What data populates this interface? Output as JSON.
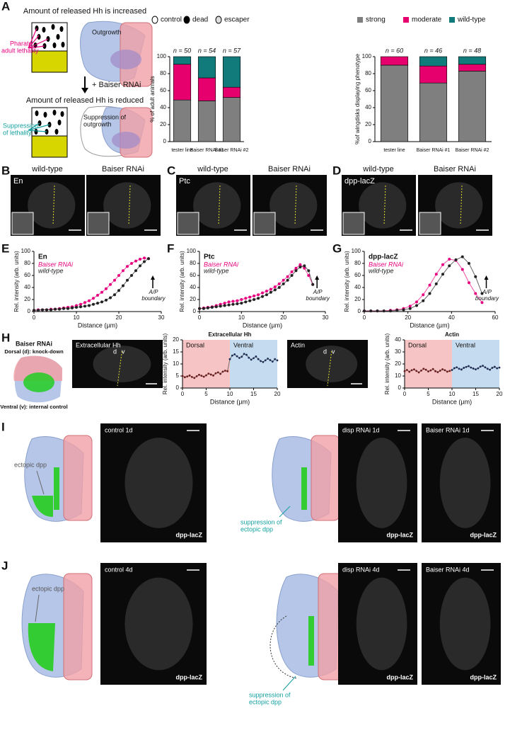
{
  "panel_labels": [
    "A",
    "B",
    "C",
    "D",
    "E",
    "F",
    "G",
    "H",
    "I",
    "J"
  ],
  "diagram_A": {
    "top_title": "Amount of released Hh is increased",
    "lethality": [
      "Pharate",
      "adult lethality"
    ],
    "outgrowth": "Outgrowth",
    "treatment": "+ Baiser RNAi",
    "bottom_title": "Amount of released Hh is reduced",
    "suppression_lethality": [
      "Suppression",
      "of lethality"
    ],
    "suppression_outgrowth": [
      "Suppression of",
      "outgrowth"
    ]
  },
  "image_panels": [
    {
      "marker": "En",
      "conditions": [
        "wild-type",
        "Baiser RNAi"
      ]
    },
    {
      "marker": "Ptc",
      "conditions": [
        "wild-type",
        "Baiser RNAi"
      ]
    },
    {
      "marker": "dpp-lacZ",
      "conditions": [
        "wild-type",
        "Baiser RNAi"
      ]
    }
  ],
  "diagram_H": {
    "title": "Baiser RNAi",
    "dorsal": "Dorsal (d): knock-down",
    "ventral": "Ventral (v): internal control"
  },
  "images_H": [
    {
      "label": "Extracellular Hh",
      "d": "d",
      "v": "v"
    },
    {
      "label": "Actin",
      "d": "d",
      "v": "v"
    }
  ],
  "panel_I": {
    "ectopic": "ectopic dpp",
    "suppression": [
      "suppression of",
      "ectopic dpp"
    ],
    "images": [
      {
        "label": "control 1d",
        "marker": "dpp-lacZ"
      },
      {
        "label": "disp RNAi 1d",
        "marker": "dpp-lacZ"
      },
      {
        "label": "Baiser RNAi 1d",
        "marker": "dpp-lacZ"
      }
    ]
  },
  "panel_J": {
    "ectopic": "ectopic dpp",
    "suppression": [
      "suppression of",
      "ectopic dpp"
    ],
    "images": [
      {
        "label": "control 4d",
        "marker": "dpp-lacZ"
      },
      {
        "label": "disp RNAi 4d",
        "marker": "dpp-lacZ"
      },
      {
        "label": "Baiser RNAi 4d",
        "marker": "dpp-lacZ"
      }
    ]
  },
  "chart_data": [
    {
      "type": "bar",
      "ylabel": "% of adult animals",
      "categories": [
        "tester line",
        "Baiser RNAi #1",
        "Baiser RNAi #2"
      ],
      "annotations": [
        "n = 50",
        "n = 54",
        "n = 57"
      ],
      "series": [
        {
          "name": "control",
          "color": "#7f7f7f",
          "icon": "#ffffff",
          "values": [
            49,
            48,
            52
          ]
        },
        {
          "name": "dead",
          "color": "#e6006e",
          "icon": "#000000",
          "values": [
            42,
            27,
            12
          ]
        },
        {
          "name": "escaper",
          "color": "#117a7a",
          "icon": "#dddddd",
          "values": [
            9,
            25,
            36
          ]
        }
      ],
      "ylim": [
        0,
        100
      ],
      "yticks": [
        0,
        20,
        40,
        60,
        80,
        100
      ]
    },
    {
      "type": "bar",
      "ylabel": "%of wingdisks displaying phenotype",
      "categories": [
        "tester line",
        "Baiser RNAi #1",
        "Baiser RNAi #2"
      ],
      "annotations": [
        "n = 60",
        "n = 46",
        "n = 48"
      ],
      "series": [
        {
          "name": "strong",
          "color": "#7f7f7f",
          "icon": "#7f7f7f",
          "values": [
            90,
            69,
            83
          ]
        },
        {
          "name": "moderate",
          "color": "#e6006e",
          "icon": "#e6006e",
          "values": [
            10,
            20,
            8
          ]
        },
        {
          "name": "wild-type",
          "color": "#117a7a",
          "icon": "#117a7a",
          "values": [
            0,
            11,
            9
          ]
        }
      ],
      "ylim": [
        0,
        100
      ],
      "yticks": [
        0,
        20,
        40,
        60,
        80,
        100
      ]
    },
    {
      "type": "line",
      "title": "En",
      "xlabel": "Distance (µm)",
      "ylabel": "Rel. intensity (arb. units)",
      "annotation": [
        "A/P",
        "boundary"
      ],
      "x": [
        0,
        1,
        2,
        3,
        4,
        5,
        6,
        7,
        8,
        9,
        10,
        11,
        12,
        13,
        14,
        15,
        16,
        17,
        18,
        19,
        20,
        21,
        22,
        23,
        24,
        25,
        26,
        27
      ],
      "series": [
        {
          "name": "Baiser RNAi",
          "color": "#e6007e",
          "values": [
            2,
            3,
            3,
            3,
            4,
            4,
            5,
            6,
            7,
            8,
            10,
            12,
            15,
            18,
            22,
            27,
            32,
            38,
            45,
            52,
            60,
            68,
            75,
            80,
            84,
            87,
            89,
            88
          ]
        },
        {
          "name": "wild-type",
          "color": "#222222",
          "values": [
            2,
            2,
            3,
            3,
            3,
            4,
            4,
            5,
            5,
            6,
            7,
            8,
            9,
            10,
            12,
            14,
            16,
            19,
            23,
            28,
            35,
            43,
            52,
            60,
            68,
            76,
            83,
            88
          ]
        }
      ],
      "xlim": [
        0,
        30
      ],
      "xticks": [
        0,
        10,
        20,
        30
      ],
      "ylim": [
        0,
        100
      ],
      "yticks": [
        0,
        20,
        40,
        60,
        80,
        100
      ]
    },
    {
      "type": "line",
      "title": "Ptc",
      "xlabel": "Distance (µm)",
      "ylabel": "Rel. intensity (arb. units)",
      "annotation": [
        "A/P",
        "boundary"
      ],
      "x": [
        0,
        1,
        2,
        3,
        4,
        5,
        6,
        7,
        8,
        9,
        10,
        11,
        12,
        13,
        14,
        15,
        16,
        17,
        18,
        19,
        20,
        21,
        22,
        23,
        24,
        25,
        26,
        27
      ],
      "series": [
        {
          "name": "Baiser RNAi",
          "color": "#e6007e",
          "values": [
            5,
            6,
            7,
            8,
            10,
            12,
            14,
            16,
            17,
            18,
            20,
            22,
            24,
            26,
            28,
            31,
            34,
            37,
            41,
            46,
            52,
            58,
            66,
            72,
            78,
            72,
            60,
            45
          ]
        },
        {
          "name": "wild-type",
          "color": "#222222",
          "values": [
            5,
            5,
            6,
            7,
            8,
            9,
            10,
            11,
            12,
            13,
            14,
            16,
            18,
            20,
            22,
            25,
            28,
            32,
            36,
            40,
            46,
            52,
            60,
            68,
            74,
            76,
            68,
            45
          ]
        }
      ],
      "xlim": [
        0,
        30
      ],
      "xticks": [
        0,
        10,
        20,
        30
      ],
      "ylim": [
        0,
        100
      ],
      "yticks": [
        0,
        20,
        40,
        60,
        80,
        100
      ]
    },
    {
      "type": "line",
      "title": "dpp-lacZ",
      "xlabel": "Distance (µm)",
      "ylabel": "Rel. intensity (arb. units)",
      "annotation": [
        "A/P",
        "boundary"
      ],
      "x": [
        0,
        3,
        6,
        9,
        12,
        15,
        18,
        21,
        24,
        27,
        30,
        33,
        36,
        39,
        42,
        45,
        48,
        51,
        54
      ],
      "series": [
        {
          "name": "Baiser RNAi",
          "color": "#e6007e",
          "values": [
            1,
            1,
            1,
            1,
            2,
            3,
            5,
            9,
            16,
            28,
            44,
            62,
            78,
            87,
            85,
            70,
            48,
            30,
            15
          ]
        },
        {
          "name": "wild-type",
          "color": "#222222",
          "values": [
            1,
            1,
            1,
            1,
            1,
            2,
            3,
            5,
            10,
            18,
            30,
            46,
            62,
            76,
            86,
            91,
            80,
            58,
            30
          ]
        }
      ],
      "xlim": [
        0,
        60
      ],
      "xticks": [
        0,
        20,
        40,
        60
      ],
      "ylim": [
        0,
        100
      ],
      "yticks": [
        0,
        20,
        40,
        60,
        80,
        100
      ]
    },
    {
      "type": "line",
      "title": "Extracellular Hh",
      "xlabel": "Distance (µm)",
      "ylabel": "Rel. intensity (arb. units)",
      "regions": [
        {
          "label": "Dorsal",
          "from": 0,
          "to": 10,
          "color": "#f6c4c4",
          "point_color": "#6b1d1d"
        },
        {
          "label": "Ventral",
          "from": 10,
          "to": 20,
          "color": "#c5dbef",
          "point_color": "#1d2d55"
        }
      ],
      "x": [
        0,
        0.5,
        1,
        1.5,
        2,
        2.5,
        3,
        3.5,
        4,
        4.5,
        5,
        5.5,
        6,
        6.5,
        7,
        7.5,
        8,
        8.5,
        9,
        9.5,
        10,
        10.5,
        11,
        11.5,
        12,
        12.5,
        13,
        13.5,
        14,
        14.5,
        15,
        15.5,
        16,
        16.5,
        17,
        17.5,
        18,
        18.5,
        19,
        19.5,
        20
      ],
      "series": [
        {
          "values": [
            5,
            4.5,
            4.8,
            5.2,
            4.6,
            4.2,
            4.9,
            5.5,
            5.1,
            4.7,
            5.3,
            6,
            5.6,
            5.2,
            6.1,
            6.5,
            5.9,
            6.8,
            7.2,
            7,
            12,
            13.5,
            14,
            13.2,
            12.5,
            13,
            14.2,
            13.8,
            12.6,
            11.8,
            12.4,
            13.1,
            12,
            11.2,
            10.8,
            11.5,
            12.2,
            11.6,
            11,
            12,
            11.5
          ]
        }
      ],
      "xlim": [
        0,
        20
      ],
      "xticks": [
        0,
        5,
        10,
        15,
        20
      ],
      "ylim": [
        0,
        20
      ],
      "yticks": [
        0,
        5,
        10,
        15,
        20
      ]
    },
    {
      "type": "line",
      "title": "Actin",
      "xlabel": "Distance (µm)",
      "ylabel": "Rel. intensity (arb. units)",
      "regions": [
        {
          "label": "Dorsal",
          "from": 0,
          "to": 10,
          "color": "#f6c4c4",
          "point_color": "#6b1d1d"
        },
        {
          "label": "Ventral",
          "from": 10,
          "to": 20,
          "color": "#c5dbef",
          "point_color": "#1d2d55"
        }
      ],
      "x": [
        0,
        0.5,
        1,
        1.5,
        2,
        2.5,
        3,
        3.5,
        4,
        4.5,
        5,
        5.5,
        6,
        6.5,
        7,
        7.5,
        8,
        8.5,
        9,
        9.5,
        10,
        10.5,
        11,
        11.5,
        12,
        12.5,
        13,
        13.5,
        14,
        14.5,
        15,
        15.5,
        16,
        16.5,
        17,
        17.5,
        18,
        18.5,
        19,
        19.5,
        20
      ],
      "series": [
        {
          "values": [
            14,
            15,
            13.5,
            14.8,
            15.5,
            14.2,
            13,
            14.5,
            16,
            15.2,
            13.8,
            14.6,
            15.8,
            14,
            13.2,
            14.4,
            15.6,
            14.8,
            13.6,
            14.2,
            15,
            16.5,
            17.2,
            16,
            15.4,
            16.8,
            17.5,
            18.2,
            17,
            16.2,
            15.5,
            16.4,
            17.8,
            18.5,
            17.2,
            16,
            15.2,
            16.8,
            17.6,
            16.4,
            17
          ]
        }
      ],
      "xlim": [
        0,
        20
      ],
      "xticks": [
        0,
        5,
        10,
        15,
        20
      ],
      "ylim": [
        0,
        40
      ],
      "yticks": [
        0,
        10,
        20,
        30,
        40
      ]
    }
  ]
}
